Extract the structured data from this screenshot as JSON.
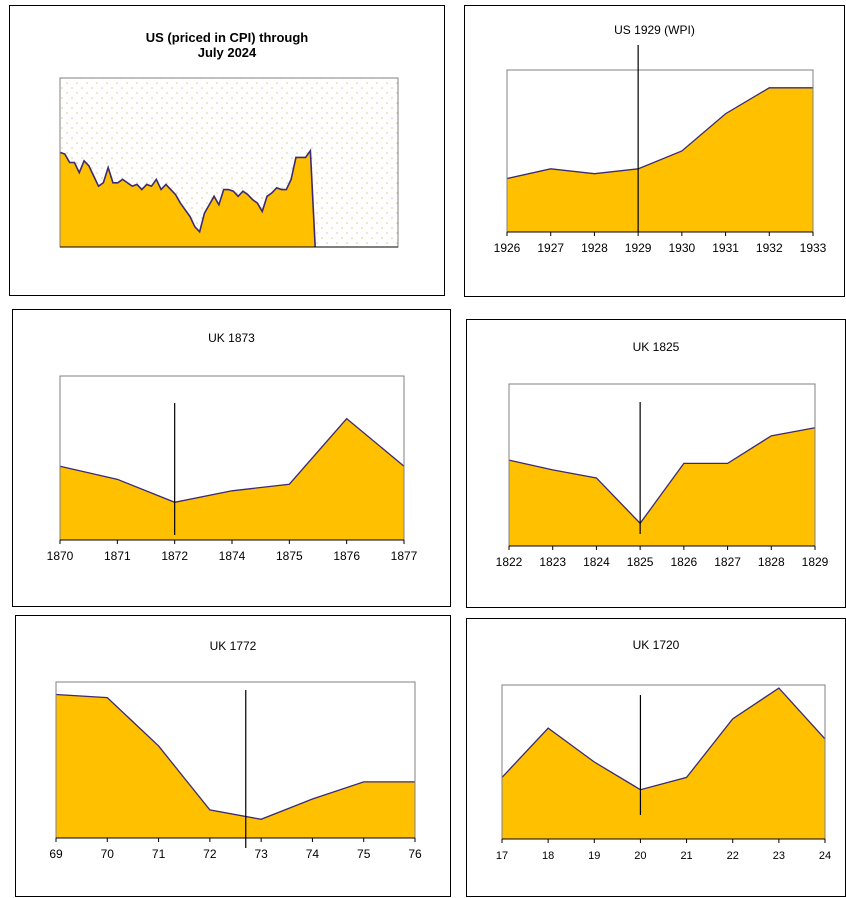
{
  "accent_fill": "#ffc000",
  "line_color": "#3b2a74",
  "chart_data": [
    {
      "id": "us-cpi",
      "type": "area",
      "title_lines": [
        "US (priced in CPI) through",
        "July 2024"
      ],
      "grid": "dotted",
      "x_ticks": [],
      "series": [
        {
          "values": [
            0.56,
            0.55,
            0.5,
            0.5,
            0.44,
            0.51,
            0.48,
            0.42,
            0.36,
            0.38,
            0.47,
            0.38,
            0.38,
            0.4,
            0.38,
            0.36,
            0.37,
            0.34,
            0.37,
            0.36,
            0.4,
            0.34,
            0.37,
            0.34,
            0.31,
            0.26,
            0.22,
            0.18,
            0.12,
            0.09,
            0.2,
            0.25,
            0.3,
            0.25,
            0.34,
            0.34,
            0.33,
            0.3,
            0.33,
            0.31,
            0.28,
            0.26,
            0.21,
            0.3,
            0.32,
            0.35,
            0.34,
            0.34,
            0.4,
            0.53,
            0.53,
            0.53,
            0.57,
            0.0
          ]
        }
      ]
    },
    {
      "id": "us-1929",
      "type": "area",
      "title": "US 1929 (WPI)",
      "x_ticks": [
        "1926",
        "1927",
        "1928",
        "1929",
        "1930",
        "1931",
        "1932",
        "1933"
      ],
      "values": [
        0.33,
        0.39,
        0.36,
        0.39,
        0.5,
        0.73,
        0.89,
        0.89
      ],
      "marker": "1929"
    },
    {
      "id": "uk-1873",
      "type": "area",
      "title": "UK 1873",
      "x_ticks": [
        "1870",
        "1871",
        "1872",
        "1874",
        "1875",
        "1876",
        "1877"
      ],
      "values": [
        0.45,
        0.37,
        0.23,
        0.3,
        0.34,
        0.74,
        0.45
      ],
      "marker": "1872"
    },
    {
      "id": "uk-1825",
      "type": "area",
      "title": "UK 1825",
      "x_ticks": [
        "1822",
        "1823",
        "1824",
        "1825",
        "1826",
        "1827",
        "1828",
        "1829"
      ],
      "values": [
        0.53,
        0.47,
        0.42,
        0.14,
        0.51,
        0.51,
        0.68,
        0.73
      ],
      "marker": "1825"
    },
    {
      "id": "uk-1772",
      "type": "area",
      "title": "UK 1772",
      "x_ticks": [
        "69",
        "70",
        "71",
        "72",
        "73",
        "74",
        "75",
        "76"
      ],
      "values": [
        0.92,
        0.9,
        0.59,
        0.18,
        0.12,
        0.25,
        0.36,
        0.36
      ],
      "marker_x": 3.7
    },
    {
      "id": "uk-1720",
      "type": "area",
      "title": "UK 1720",
      "x_ticks": [
        "17",
        "18",
        "19",
        "20",
        "21",
        "22",
        "23",
        "24"
      ],
      "values": [
        0.4,
        0.72,
        0.5,
        0.32,
        0.4,
        0.78,
        0.98,
        0.65
      ],
      "marker": "20"
    }
  ]
}
